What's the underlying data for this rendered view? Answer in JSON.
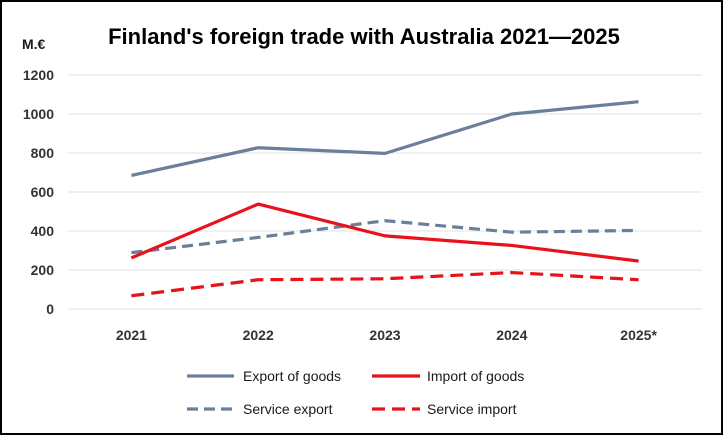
{
  "chart_data": {
    "type": "line",
    "title": "Finland's foreign trade with Australia 2021—2025",
    "ylabel": "M.€",
    "xlabel": "",
    "categories": [
      "2021",
      "2022",
      "2023",
      "2024",
      "2025*"
    ],
    "ylim": [
      0,
      1200
    ],
    "yticks": [
      0,
      200,
      400,
      600,
      800,
      1000,
      1200
    ],
    "ytick_labels": [
      "0",
      "200",
      "400",
      "600",
      "800",
      "1000",
      "1200"
    ],
    "grid": true,
    "legend_position": "bottom",
    "series": [
      {
        "name": "Export of goods",
        "values": [
          685,
          827,
          798,
          1000,
          1063
        ],
        "color": "#6a7f9a",
        "style": "solid"
      },
      {
        "name": "Import of goods",
        "values": [
          262,
          538,
          375,
          326,
          246
        ],
        "color": "#e8121b",
        "style": "solid"
      },
      {
        "name": "Service export",
        "values": [
          289,
          367,
          453,
          394,
          403
        ],
        "color": "#6a7f9a",
        "style": "dashed"
      },
      {
        "name": "Service import",
        "values": [
          68,
          150,
          155,
          187,
          150
        ],
        "color": "#e8121b",
        "style": "dashed"
      }
    ]
  }
}
